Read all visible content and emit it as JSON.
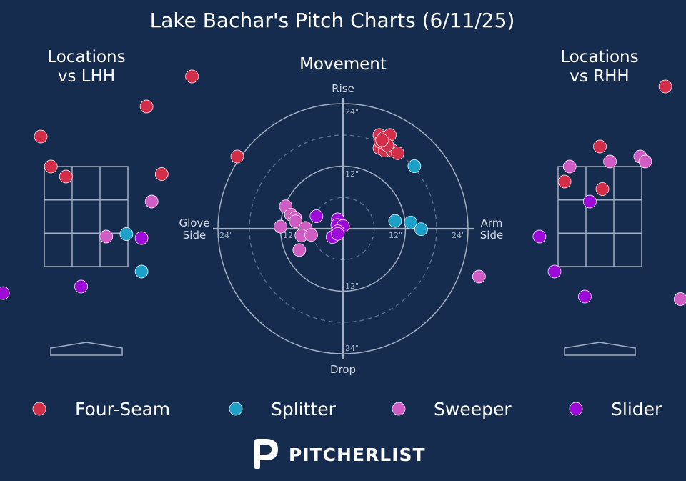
{
  "title": "Lake Bachar's Pitch Charts (6/11/25)",
  "panels": {
    "lhh": [
      "Locations",
      "vs LHH"
    ],
    "movement": "Movement",
    "rhh": [
      "Locations",
      "vs RHH"
    ]
  },
  "movement_axes": {
    "top": "Rise",
    "bottom": "Drop",
    "left": [
      "Glove",
      "Side"
    ],
    "right": [
      "Arm",
      "Side"
    ],
    "ticks": {
      "top_24": "24\"",
      "top_12": "12\"",
      "bottom_12": "12\"",
      "bottom_24": "24\"",
      "left_24": "24\"",
      "left_12": "12\"",
      "right_12": "12\"",
      "right_24": "24\""
    }
  },
  "legend": [
    {
      "label": "Four-Seam",
      "color": "#d22d49"
    },
    {
      "label": "Splitter",
      "color": "#1da1c9"
    },
    {
      "label": "Sweeper",
      "color": "#d05dc4"
    },
    {
      "label": "Slider",
      "color": "#9d0bd6"
    }
  ],
  "brand": {
    "bold": "PITCHER",
    "light": "LIST"
  },
  "chart_data": [
    {
      "type": "scatter",
      "name": "Locations vs LHH",
      "series": [
        {
          "name": "Four-Seam",
          "points": [
            [
              2.1,
              5.3
            ],
            [
              1.2,
              4.7
            ],
            [
              -0.9,
              4.1
            ],
            [
              -0.7,
              3.5
            ],
            [
              -0.4,
              3.3
            ],
            [
              1.5,
              3.35
            ],
            [
              3.0,
              3.7
            ]
          ]
        },
        {
          "name": "Splitter",
          "points": [
            [
              -2.1,
              1.35
            ],
            [
              1.1,
              1.4
            ],
            [
              0.8,
              2.15
            ]
          ]
        },
        {
          "name": "Sweeper",
          "points": [
            [
              1.3,
              2.8
            ],
            [
              0.4,
              2.1
            ]
          ]
        },
        {
          "name": "Slider",
          "points": [
            [
              1.1,
              2.07
            ],
            [
              -1.65,
              0.97
            ],
            [
              -0.1,
              1.1
            ]
          ]
        }
      ]
    },
    {
      "type": "scatter",
      "name": "Movement",
      "axis_range_inches": [
        -24,
        24
      ],
      "series": [
        {
          "name": "Four-Seam",
          "points": [
            [
              7,
              18
            ],
            [
              8,
              17.5
            ],
            [
              9,
              18
            ],
            [
              7,
              15.5
            ],
            [
              8,
              15
            ],
            [
              9.5,
              15
            ],
            [
              10.5,
              14.5
            ],
            [
              7.2,
              16.7
            ],
            [
              8.5,
              16
            ],
            [
              7.5,
              17
            ]
          ]
        },
        {
          "name": "Splitter",
          "points": [
            [
              13.7,
              12
            ],
            [
              10,
              1.5
            ],
            [
              13,
              1.2
            ],
            [
              15,
              -0.1
            ]
          ]
        },
        {
          "name": "Sweeper",
          "points": [
            [
              -11,
              4.3
            ],
            [
              -10,
              2.7
            ],
            [
              -9.2,
              2.1
            ],
            [
              -12,
              0.4
            ],
            [
              -9.1,
              1.4
            ],
            [
              -7.2,
              0.15
            ],
            [
              -8,
              -1.3
            ],
            [
              -6.1,
              -1.2
            ],
            [
              -8.4,
              -4.1
            ]
          ]
        },
        {
          "name": "Slider",
          "points": [
            [
              -5.1,
              2.4
            ],
            [
              -1.0,
              1.8
            ],
            [
              -1.1,
              0.7
            ],
            [
              0,
              0.5
            ],
            [
              -1.0,
              -0.5
            ],
            [
              -2.0,
              -1.6
            ],
            [
              -1.0,
              -1.0
            ]
          ]
        }
      ]
    },
    {
      "type": "scatter",
      "name": "Locations vs RHH",
      "series": [
        {
          "name": "Four-Seam",
          "points": [
            [
              1.3,
              5.1
            ],
            [
              2.0,
              4.7
            ],
            [
              0,
              3.9
            ],
            [
              -0.7,
              3.2
            ],
            [
              0.05,
              3.05
            ]
          ]
        },
        {
          "name": "Sweeper",
          "points": [
            [
              -0.6,
              3.5
            ],
            [
              0.2,
              3.6
            ],
            [
              0.8,
              3.7
            ],
            [
              0.9,
              3.6
            ],
            [
              -2.4,
              1.3
            ],
            [
              1.6,
              0.85
            ]
          ]
        },
        {
          "name": "Slider",
          "points": [
            [
              -0.2,
              2.8
            ],
            [
              -1.2,
              2.1
            ],
            [
              -0.9,
              1.4
            ],
            [
              -0.3,
              0.9
            ]
          ]
        }
      ]
    }
  ]
}
